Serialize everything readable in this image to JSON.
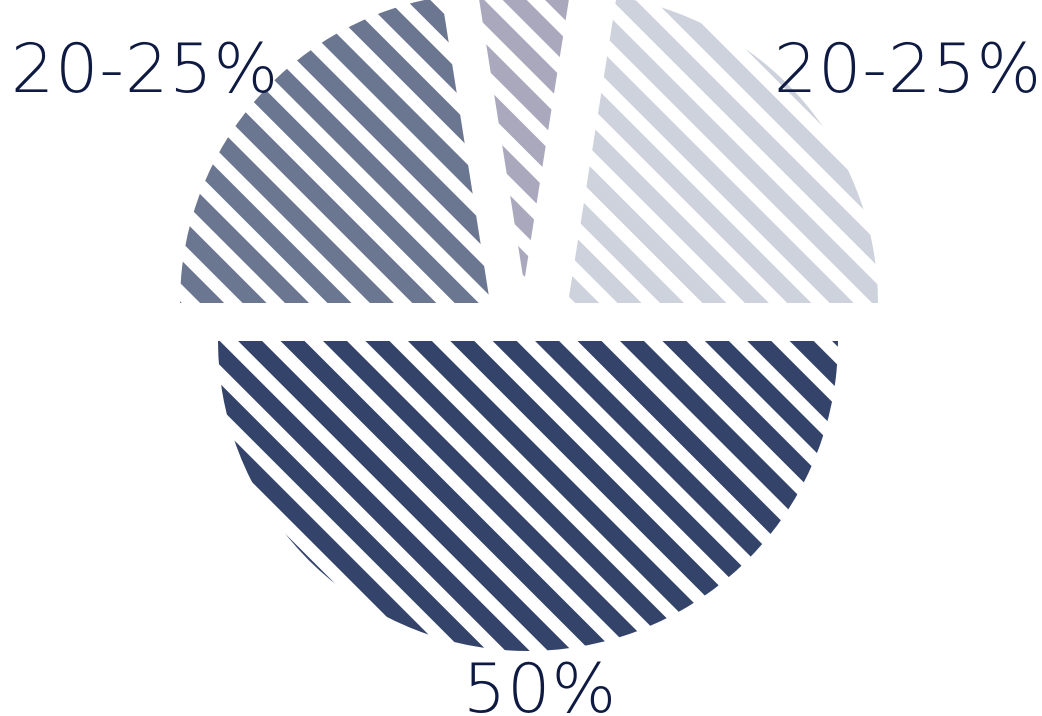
{
  "chart_data": {
    "type": "pie",
    "style": "exploded-hatched",
    "title": "",
    "legend": "none",
    "slices": [
      {
        "label": "50%",
        "value": 50,
        "color": "#33436a"
      },
      {
        "label": "20-25%",
        "value": 22.5,
        "color": "#6b7690"
      },
      {
        "label": "",
        "value": 5,
        "color": "#aaa8bc"
      },
      {
        "label": "20-25%",
        "value": 22.5,
        "color": "#ced2dc"
      }
    ],
    "label_color": "#0e1a42"
  }
}
